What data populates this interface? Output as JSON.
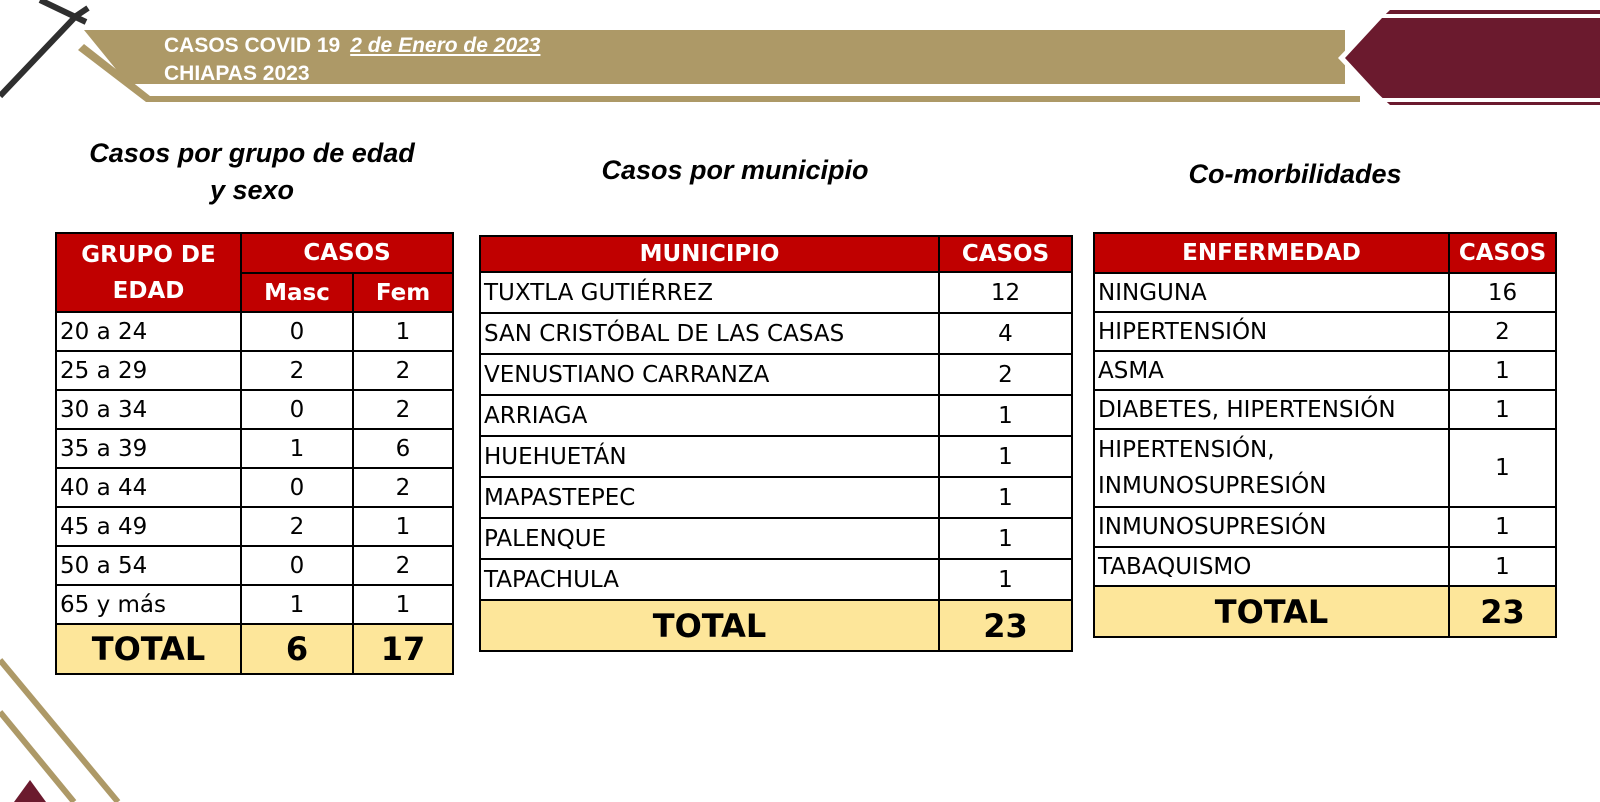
{
  "header": {
    "title": "CASOS COVID 19",
    "date": "2 de Enero de 2023",
    "subtitle": "CHIAPAS 2023"
  },
  "colors": {
    "gold": "#ad9967",
    "maroon": "#6b1a2e",
    "header_red": "#c00000",
    "total_yellow": "#fde69a"
  },
  "age_table": {
    "heading": "Casos por grupo de edad y sexo",
    "col_group": "GRUPO DE EDAD",
    "col_cases": "CASOS",
    "col_male": "Masc",
    "col_female": "Fem",
    "rows": [
      {
        "group": "20 a 24",
        "male": "0",
        "female": "1"
      },
      {
        "group": "25 a 29",
        "male": "2",
        "female": "2"
      },
      {
        "group": "30 a 34",
        "male": "0",
        "female": "2"
      },
      {
        "group": "35 a 39",
        "male": "1",
        "female": "6"
      },
      {
        "group": "40 a 44",
        "male": "0",
        "female": "2"
      },
      {
        "group": "45 a 49",
        "male": "2",
        "female": "1"
      },
      {
        "group": "50 a 54",
        "male": "0",
        "female": "2"
      },
      {
        "group": "65 y más",
        "male": "1",
        "female": "1"
      }
    ],
    "total_label": "TOTAL",
    "total_male": "6",
    "total_female": "17"
  },
  "municipality_table": {
    "heading": "Casos por municipio",
    "col_municipality": "MUNICIPIO",
    "col_cases": "CASOS",
    "rows": [
      {
        "name": "TUXTLA GUTIÉRREZ",
        "cases": "12"
      },
      {
        "name": "SAN CRISTÓBAL DE LAS CASAS",
        "cases": "4"
      },
      {
        "name": "VENUSTIANO CARRANZA",
        "cases": "2"
      },
      {
        "name": "ARRIAGA",
        "cases": "1"
      },
      {
        "name": "HUEHUETÁN",
        "cases": "1"
      },
      {
        "name": "MAPASTEPEC",
        "cases": "1"
      },
      {
        "name": "PALENQUE",
        "cases": "1"
      },
      {
        "name": "TAPACHULA",
        "cases": "1"
      }
    ],
    "total_label": "TOTAL",
    "total": "23"
  },
  "comorbidity_table": {
    "heading": "Co-morbilidades",
    "col_disease": "ENFERMEDAD",
    "col_cases": "CASOS",
    "rows": [
      {
        "name": "NINGUNA",
        "cases": "16"
      },
      {
        "name": "HIPERTENSIÓN",
        "cases": "2"
      },
      {
        "name": "ASMA",
        "cases": "1"
      },
      {
        "name": "DIABETES, HIPERTENSIÓN",
        "cases": "1"
      },
      {
        "name": "HIPERTENSIÓN, INMUNOSUPRESIÓN",
        "cases": "1"
      },
      {
        "name": "INMUNOSUPRESIÓN",
        "cases": "1"
      },
      {
        "name": "TABAQUISMO",
        "cases": "1"
      }
    ],
    "total_label": "TOTAL",
    "total": "23"
  }
}
